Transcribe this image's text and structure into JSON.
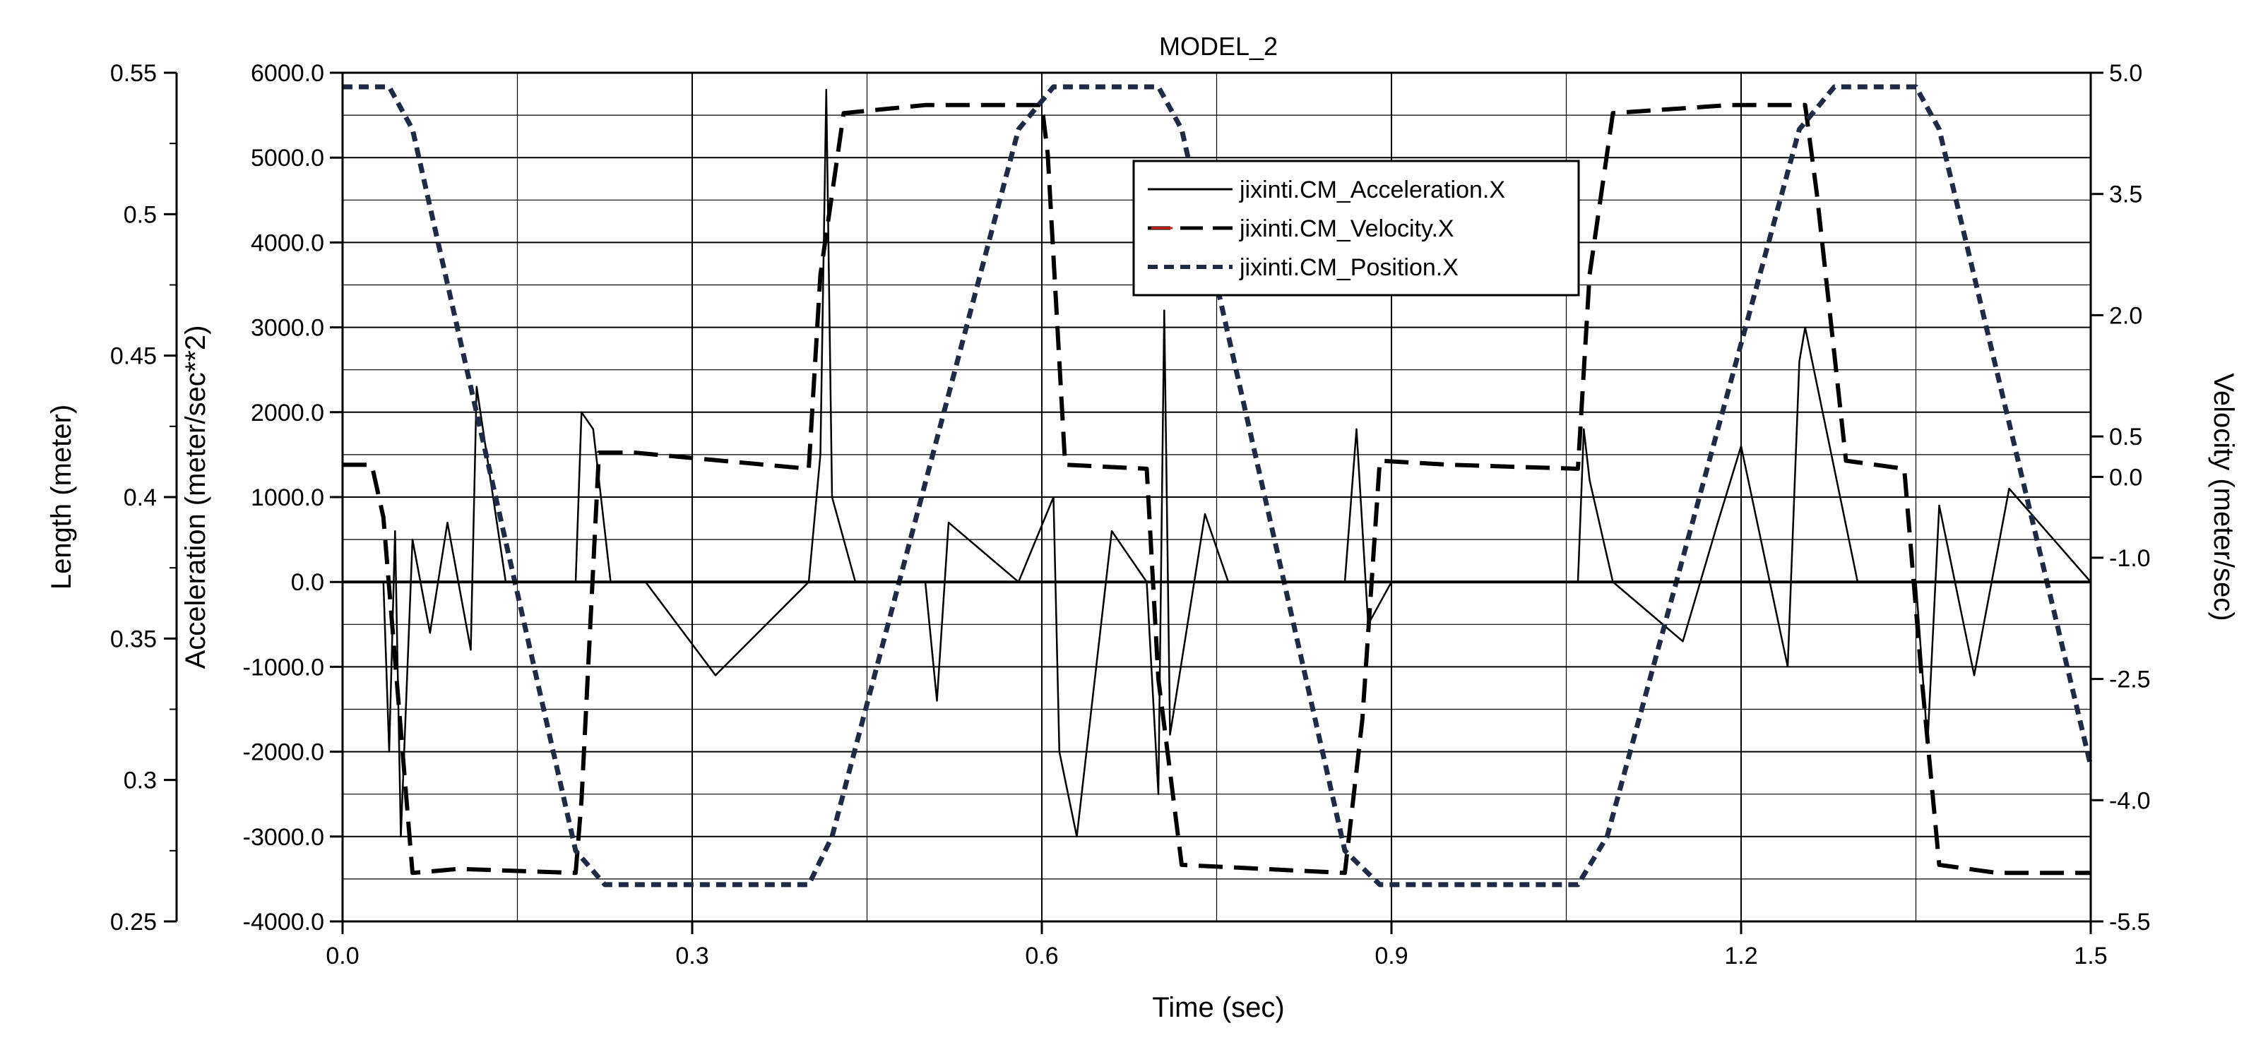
{
  "chart_data": {
    "type": "line",
    "title": "MODEL_2",
    "xlabel": "Time (sec)",
    "xlim": [
      0.0,
      1.5
    ],
    "x_ticks": [
      "0.0",
      "0.3",
      "0.6",
      "0.9",
      "1.2",
      "1.5"
    ],
    "x_tick_values": [
      0.0,
      0.3,
      0.6,
      0.9,
      1.2,
      1.5
    ],
    "axes": {
      "length": {
        "label": "Length (meter)",
        "ylim": [
          0.25,
          0.55
        ],
        "ticks": [
          "0.25",
          "0.3",
          "0.35",
          "0.4",
          "0.45",
          "0.5",
          "0.55"
        ],
        "tick_values": [
          0.25,
          0.3,
          0.35,
          0.4,
          0.45,
          0.5,
          0.55
        ]
      },
      "acceleration": {
        "label": "Acceleration (meter/sec**2)",
        "ylim": [
          -4000,
          6000
        ],
        "ticks": [
          "-4000.0",
          "-3000.0",
          "-2000.0",
          "-1000.0",
          "0.0",
          "1000.0",
          "2000.0",
          "3000.0",
          "4000.0",
          "5000.0",
          "6000.0"
        ],
        "tick_values": [
          -4000,
          -3000,
          -2000,
          -1000,
          0,
          1000,
          2000,
          3000,
          4000,
          5000,
          6000
        ]
      },
      "velocity": {
        "label": "Velocity (meter/sec)",
        "ylim": [
          -5.5,
          5.0
        ],
        "ticks": [
          "-5.5",
          "-4.0",
          "-2.5",
          "-1.0",
          "0.0",
          "0.5",
          "2.0",
          "3.5",
          "5.0"
        ],
        "tick_values": [
          -5.5,
          -4.0,
          -2.5,
          -1.0,
          0.0,
          0.5,
          2.0,
          3.5,
          5.0
        ]
      }
    },
    "legend": {
      "placement": "upper-center",
      "entries": [
        {
          "label": "jixinti.CM_Acceleration.X",
          "series": "acceleration"
        },
        {
          "label": "jixinti.CM_Velocity.X",
          "series": "velocity"
        },
        {
          "label": "jixinti.CM_Position.X",
          "series": "position"
        }
      ]
    },
    "series": [
      {
        "name": "jixinti.CM_Position.X",
        "axis": "length",
        "style": "short-dash",
        "color": "#1f2a44",
        "x": [
          0.0,
          0.04,
          0.06,
          0.2,
          0.225,
          0.4,
          0.42,
          0.58,
          0.61,
          0.7,
          0.72,
          0.86,
          0.89,
          1.06,
          1.085,
          1.25,
          1.28,
          1.35,
          1.37,
          1.5
        ],
        "values": [
          0.545,
          0.545,
          0.53,
          0.275,
          0.263,
          0.263,
          0.28,
          0.53,
          0.545,
          0.545,
          0.53,
          0.275,
          0.263,
          0.263,
          0.28,
          0.53,
          0.545,
          0.545,
          0.53,
          0.305
        ]
      },
      {
        "name": "jixinti.CM_Velocity.X",
        "axis": "velocity",
        "style": "long-dash",
        "color": "#000000",
        "x": [
          0.0,
          0.025,
          0.035,
          0.06,
          0.1,
          0.2,
          0.205,
          0.22,
          0.25,
          0.4,
          0.41,
          0.43,
          0.5,
          0.6,
          0.605,
          0.62,
          0.69,
          0.7,
          0.72,
          0.86,
          0.875,
          0.89,
          0.95,
          1.06,
          1.07,
          1.09,
          1.19,
          1.255,
          1.265,
          1.29,
          1.34,
          1.355,
          1.37,
          1.42,
          1.5
        ],
        "values": [
          0.15,
          0.15,
          -0.5,
          -4.9,
          -4.85,
          -4.9,
          -4.0,
          0.3,
          0.3,
          0.1,
          2.5,
          4.5,
          4.6,
          4.6,
          4.0,
          0.15,
          0.1,
          -2.5,
          -4.8,
          -4.9,
          -3.0,
          0.2,
          0.15,
          0.1,
          2.5,
          4.5,
          4.6,
          4.6,
          3.5,
          0.2,
          0.1,
          -2.5,
          -4.8,
          -4.9,
          -4.9
        ]
      },
      {
        "name": "jixinti.CM_Acceleration.X",
        "axis": "acceleration",
        "style": "solid",
        "color": "#000000",
        "x": [
          0.0,
          0.035,
          0.04,
          0.045,
          0.05,
          0.06,
          0.075,
          0.09,
          0.11,
          0.115,
          0.14,
          0.2,
          0.205,
          0.215,
          0.23,
          0.26,
          0.32,
          0.4,
          0.41,
          0.415,
          0.42,
          0.44,
          0.5,
          0.51,
          0.52,
          0.58,
          0.61,
          0.615,
          0.63,
          0.66,
          0.69,
          0.7,
          0.705,
          0.71,
          0.74,
          0.76,
          0.86,
          0.87,
          0.88,
          0.9,
          0.95,
          1.06,
          1.065,
          1.07,
          1.09,
          1.15,
          1.18,
          1.2,
          1.24,
          1.25,
          1.255,
          1.3,
          1.35,
          1.36,
          1.37,
          1.4,
          1.43,
          1.5
        ],
        "values": [
          0,
          0,
          -2000,
          600,
          -3000,
          500,
          -600,
          700,
          -800,
          2300,
          0,
          0,
          2000,
          1800,
          0,
          0,
          -1100,
          0,
          1500,
          5800,
          1000,
          0,
          0,
          -1400,
          700,
          0,
          1000,
          -2000,
          -3000,
          600,
          0,
          -2500,
          3200,
          -1800,
          800,
          0,
          0,
          1800,
          -500,
          0,
          0,
          0,
          1800,
          1200,
          0,
          -700,
          700,
          1600,
          -1000,
          2600,
          3000,
          0,
          0,
          -1900,
          900,
          -1100,
          1100,
          0
        ]
      }
    ]
  }
}
